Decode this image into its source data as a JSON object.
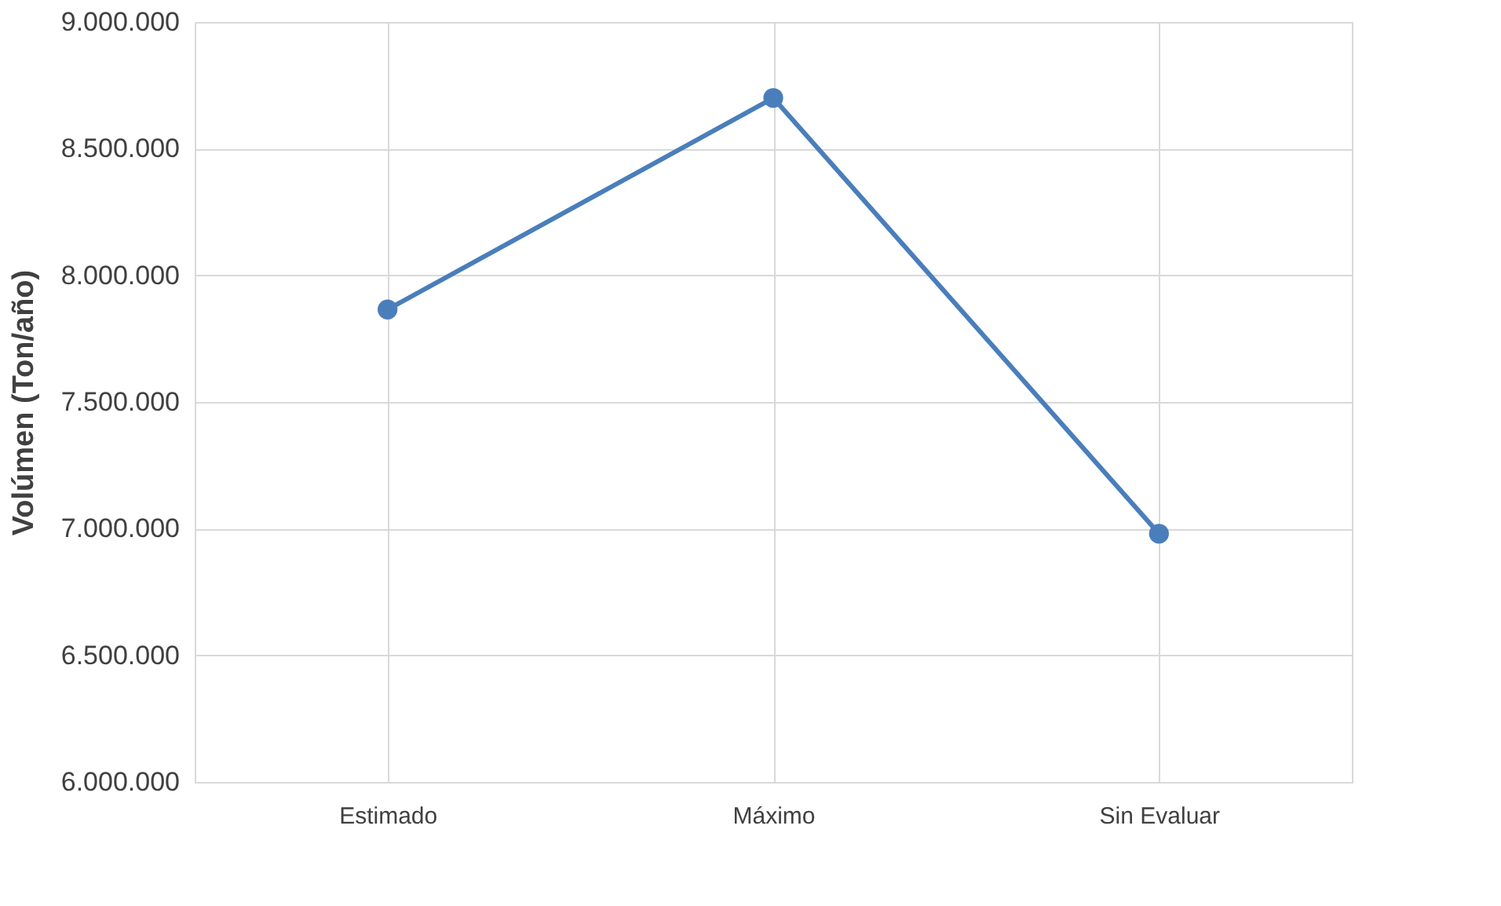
{
  "chart_data": {
    "type": "line",
    "ylabel": "Volúmen (Ton/año)",
    "categories": [
      "Estimado",
      "Máximo",
      "Sin Evaluar"
    ],
    "values": [
      7865000,
      8700000,
      6980000
    ],
    "color": "#4a7ebb",
    "ylim": [
      6000000,
      9000000
    ],
    "yticks": [
      {
        "value": 6000000,
        "label": "6.000.000"
      },
      {
        "value": 6500000,
        "label": "6.500.000"
      },
      {
        "value": 7000000,
        "label": "7.000.000"
      },
      {
        "value": 7500000,
        "label": "7.500.000"
      },
      {
        "value": 8000000,
        "label": "8.000.000"
      },
      {
        "value": 8500000,
        "label": "8.500.000"
      },
      {
        "value": 9000000,
        "label": "9.000.000"
      }
    ],
    "grid": true,
    "marker": "circle"
  }
}
